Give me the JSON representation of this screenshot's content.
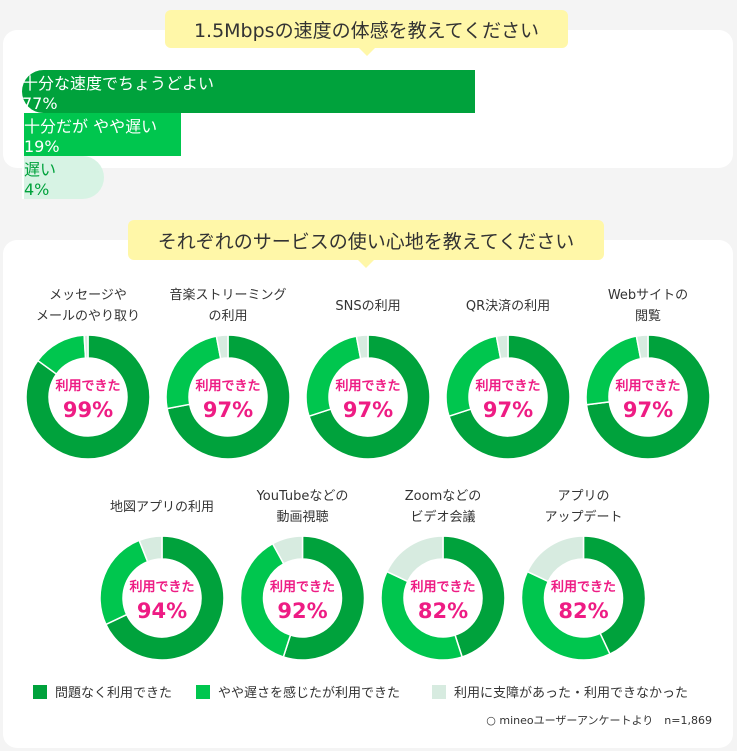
{
  "speed_survey": {
    "title": "1.5Mbpsの速度の体感を教えてください",
    "colors": [
      "#00a23c",
      "#00c64e",
      "#d7f3e4"
    ],
    "segments": [
      {
        "label": "十分な速度でちょうどよい",
        "value": 77,
        "value_label": "77%"
      },
      {
        "label": "十分だが\nやや遅い",
        "value": 19,
        "value_label": "19%"
      },
      {
        "label": "遅い",
        "value": 4,
        "value_label": "4%"
      }
    ]
  },
  "service_survey": {
    "title": "それぞれのサービスの使い心地を教えてください",
    "center_caption": "利用できた",
    "colors": [
      "#00a23c",
      "#00c64e",
      "#d7ebe0"
    ],
    "legend": [
      "問題なく利用できた",
      "やや遅さを感じたが利用できた",
      "利用に支障があった・利用できなかった"
    ],
    "items": [
      {
        "name": "メッセージや\nメールのやり取り",
        "values": [
          85,
          14,
          1
        ],
        "value_label": "99%"
      },
      {
        "name": "音楽ストリーミング\nの利用",
        "values": [
          72,
          25,
          3
        ],
        "value_label": "97%"
      },
      {
        "name": "SNSの利用",
        "values": [
          70,
          27,
          3
        ],
        "value_label": "97%"
      },
      {
        "name": "QR決済の利用",
        "values": [
          70,
          27,
          3
        ],
        "value_label": "97%"
      },
      {
        "name": "Webサイトの\n閲覧",
        "values": [
          73,
          24,
          3
        ],
        "value_label": "97%"
      },
      {
        "name": "地図アプリの利用",
        "values": [
          68,
          26,
          6
        ],
        "value_label": "94%"
      },
      {
        "name": "YouTubeなどの\n動画視聴",
        "values": [
          55,
          37,
          8
        ],
        "value_label": "92%"
      },
      {
        "name": "Zoomなどの\nビデオ会議",
        "values": [
          45,
          37,
          18
        ],
        "value_label": "82%"
      },
      {
        "name": "アプリの\nアップデート",
        "values": [
          43,
          39,
          18
        ],
        "value_label": "82%"
      }
    ]
  },
  "footnote": "○ mineoユーザーアンケートより　n=1,869"
}
